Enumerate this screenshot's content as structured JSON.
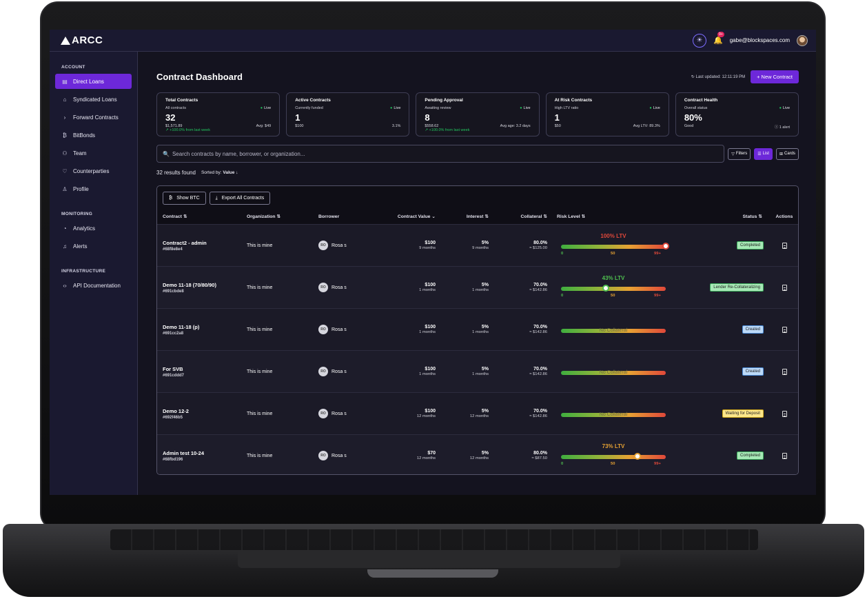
{
  "app": {
    "logo": "ARCC",
    "user_email": "gabe@blockspaces.com",
    "notification_badge": "9+"
  },
  "sidebar": {
    "sections": [
      {
        "title": "ACCOUNT",
        "items": [
          {
            "label": "Direct Loans",
            "icon": "document-icon",
            "active": true
          },
          {
            "label": "Syndicated Loans",
            "icon": "bank-icon"
          },
          {
            "label": "Forward Contracts",
            "icon": "chevron-right-icon"
          },
          {
            "label": "BitBonds",
            "icon": "bitcoin-icon"
          },
          {
            "label": "Team",
            "icon": "users-icon"
          },
          {
            "label": "Counterparties",
            "icon": "handshake-icon"
          },
          {
            "label": "Profile",
            "icon": "user-icon"
          }
        ]
      },
      {
        "title": "MONITORING",
        "items": [
          {
            "label": "Analytics",
            "icon": "pie-chart-icon"
          },
          {
            "label": "Alerts",
            "icon": "bell-icon"
          }
        ]
      },
      {
        "title": "INFRASTRUCTURE",
        "items": [
          {
            "label": "API Documentation",
            "icon": "code-icon"
          }
        ]
      }
    ]
  },
  "header": {
    "title": "Contract Dashboard",
    "last_updated": "Last updated: 12:11:19 PM",
    "new_button": "+ New Contract"
  },
  "stats": [
    {
      "title": "Total Contracts",
      "subtitle": "All contracts",
      "live": "Live",
      "value": "32",
      "foot_left": "$1,571.89",
      "foot_right": "Avg: $49",
      "trend": "↗ +100.0% from last week"
    },
    {
      "title": "Active Contracts",
      "subtitle": "Currently funded",
      "live": "Live",
      "value": "1",
      "foot_left": "$100",
      "foot_right": "3.1%",
      "trend": ""
    },
    {
      "title": "Pending Approval",
      "subtitle": "Awaiting review",
      "live": "Live",
      "value": "8",
      "foot_left": "$558.62",
      "foot_right": "Avg age: 3.2 days",
      "trend": "↗ +100.0% from last week"
    },
    {
      "title": "At Risk Contracts",
      "subtitle": "High LTV ratio",
      "live": "Live",
      "value": "1",
      "foot_left": "$50",
      "foot_right": "Avg LTV: 89.3%",
      "trend": ""
    },
    {
      "title": "Contract Health",
      "subtitle": "Overall status",
      "live": "Live",
      "value": "80%",
      "foot_left": "Good",
      "foot_right": "ⓘ 1 alert",
      "trend": ""
    }
  ],
  "search": {
    "placeholder": "Search contracts by name, borrower, or organization...",
    "filters": "Filters",
    "list": "List",
    "cards": "Cards"
  },
  "results": {
    "count": "32 results found",
    "sorted_label": "Sorted by:",
    "sorted_value": "Value ↓"
  },
  "table": {
    "show_btc": "Show BTC",
    "export": "Export All Contracts",
    "columns": [
      "Contract ⇅",
      "Organization ⇅",
      "Borrower",
      "Contract Value ⌄",
      "Interest ⇅",
      "Collateral ⇅",
      "Risk Level ⇅",
      "Status ⇅",
      "Actions"
    ],
    "rows": [
      {
        "name": "Contract2 - admin",
        "id": "#68f8e8e4",
        "org": "This is mine",
        "borrower_initials": "RO",
        "borrower": "Rosa s",
        "value": "$100",
        "term": "9 months",
        "interest": "5%",
        "interest_term": "9 months",
        "collateral": "80.0%",
        "collateral_sub": "≈ $125.00",
        "ltv_label": "100% LTV",
        "ltv": 100,
        "ltv_color": "#e0483a",
        "status": "Completed",
        "status_kind": "green"
      },
      {
        "name": "Demo 11-18 (70/80/90)",
        "id": "#691cbde8",
        "org": "This is mine",
        "borrower_initials": "RO",
        "borrower": "Rosa s",
        "value": "$100",
        "term": "1 months",
        "interest": "5%",
        "interest_term": "1 months",
        "collateral": "70.0%",
        "collateral_sub": "≈ $142.86",
        "ltv_label": "43% LTV",
        "ltv": 43,
        "ltv_color": "#4fc04f",
        "status": "Lender Re-Collateralizing",
        "status_kind": "green"
      },
      {
        "name": "Demo 11-18 (p)",
        "id": "#691cc2a8",
        "org": "This is mine",
        "borrower_initials": "RO",
        "borrower": "Rosa s",
        "value": "$100",
        "term": "1 months",
        "interest": "5%",
        "interest_term": "1 months",
        "collateral": "70.0%",
        "collateral_sub": "≈ $142.86",
        "nocol": "No Collateral",
        "status": "Created",
        "status_kind": "blue"
      },
      {
        "name": "For SVB",
        "id": "#691cddd7",
        "org": "This is mine",
        "borrower_initials": "RO",
        "borrower": "Rosa s",
        "value": "$100",
        "term": "1 months",
        "interest": "5%",
        "interest_term": "1 months",
        "collateral": "70.0%",
        "collateral_sub": "≈ $142.86",
        "nocol": "No Collateral",
        "status": "Created",
        "status_kind": "blue"
      },
      {
        "name": "Demo 12-2",
        "id": "#692f46b5",
        "org": "This is mine",
        "borrower_initials": "RO",
        "borrower": "Rosa s",
        "value": "$100",
        "term": "12 months",
        "interest": "5%",
        "interest_term": "12 months",
        "collateral": "70.0%",
        "collateral_sub": "≈ $142.86",
        "nocol": "No Collateral",
        "status": "Waiting for Deposit",
        "status_kind": "yellow"
      },
      {
        "name": "Admin test 10-24",
        "id": "#68fbd196",
        "org": "This is mine",
        "borrower_initials": "RO",
        "borrower": "Rosa s",
        "value": "$70",
        "term": "12 months",
        "interest": "5%",
        "interest_term": "12 months",
        "collateral": "80.0%",
        "collateral_sub": "≈ $87.50",
        "ltv_label": "73% LTV",
        "ltv": 73,
        "ltv_color": "#e7a233",
        "status": "Completed",
        "status_kind": "green"
      }
    ],
    "ticks": [
      "0",
      "50",
      "99+"
    ]
  }
}
